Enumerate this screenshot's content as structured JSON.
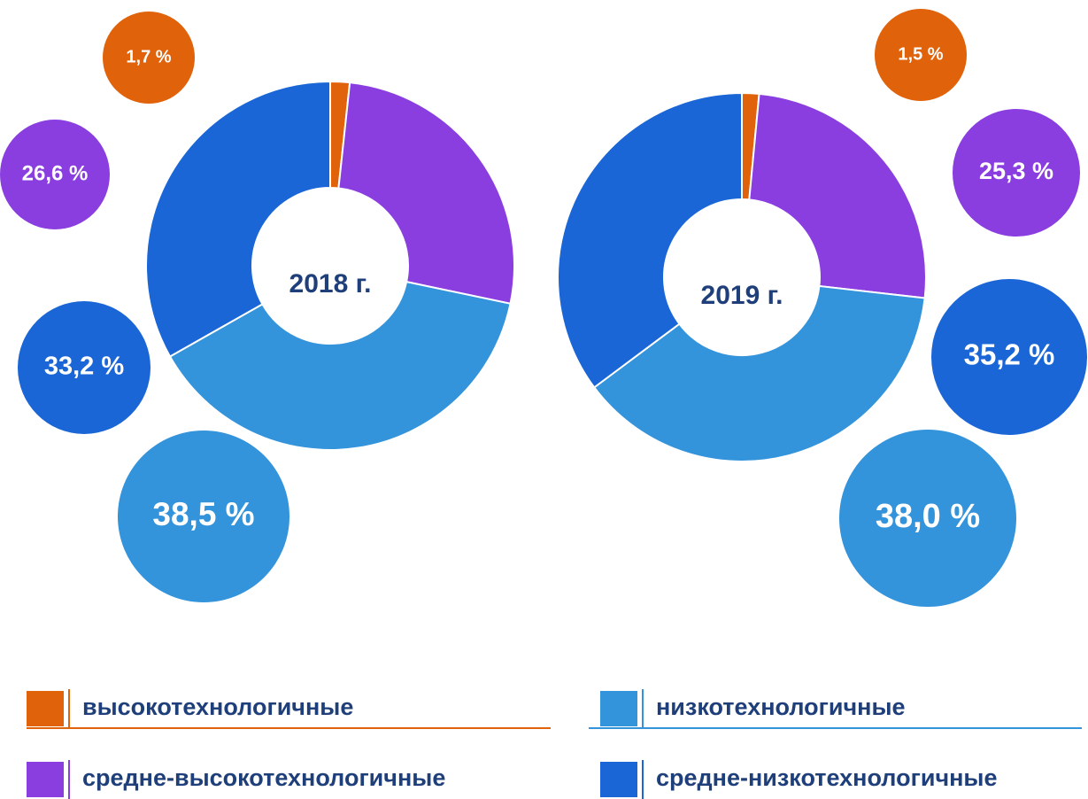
{
  "chart_data": [
    {
      "type": "donut",
      "title": "2018 г.",
      "values": [
        1.7,
        26.6,
        38.5,
        33.2
      ],
      "value_labels": [
        "1,7 %",
        "26,6 %",
        "38,5 %",
        "33,2 %"
      ]
    },
    {
      "type": "donut",
      "title": "2019 г.",
      "values": [
        1.5,
        25.3,
        38.0,
        35.2
      ],
      "value_labels": [
        "1,5 %",
        "25,3 %",
        "38,0 %",
        "35,2 %"
      ]
    }
  ],
  "legend": {
    "categories": [
      "высокотехнологичные",
      "средне-высокотехнологичные",
      "низкотехнологичные",
      "средне-низкотехнологичные"
    ],
    "colors": [
      "#e0620a",
      "#8a3ee0",
      "#3393db",
      "#1a66d6"
    ]
  }
}
